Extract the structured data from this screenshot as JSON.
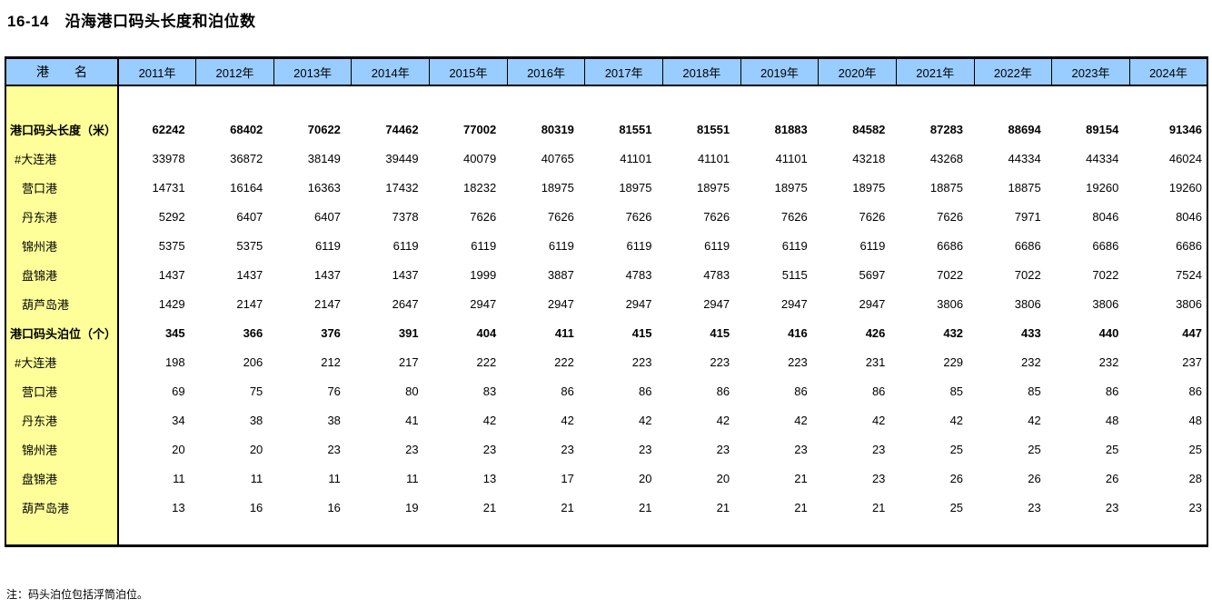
{
  "title": "16-14　沿海港口码头长度和泊位数",
  "note": "注：码头泊位包括浮筒泊位。",
  "colors": {
    "header_bg": "#99CCFF",
    "label_column_bg": "#FFFF99",
    "border": "#000000",
    "body_bg": "#FFFFFF"
  },
  "table": {
    "corner_header": "港　　名",
    "years": [
      "2011年",
      "2012年",
      "2013年",
      "2014年",
      "2015年",
      "2016年",
      "2017年",
      "2018年",
      "2019年",
      "2020年",
      "2021年",
      "2022年",
      "2023年",
      "2024年"
    ],
    "rows": [
      {
        "label": "港口码头长度（米）",
        "bold": true,
        "indent": 0,
        "values": [
          62242,
          68402,
          70622,
          74462,
          77002,
          80319,
          81551,
          81551,
          81883,
          84582,
          87283,
          88694,
          89154,
          91346
        ]
      },
      {
        "label": "#大连港",
        "bold": false,
        "indent": 1,
        "values": [
          33978,
          36872,
          38149,
          39449,
          40079,
          40765,
          41101,
          41101,
          41101,
          43218,
          43268,
          44334,
          44334,
          46024
        ]
      },
      {
        "label": "营口港",
        "bold": false,
        "indent": 2,
        "values": [
          14731,
          16164,
          16363,
          17432,
          18232,
          18975,
          18975,
          18975,
          18975,
          18975,
          18875,
          18875,
          19260,
          19260
        ]
      },
      {
        "label": "丹东港",
        "bold": false,
        "indent": 2,
        "values": [
          5292,
          6407,
          6407,
          7378,
          7626,
          7626,
          7626,
          7626,
          7626,
          7626,
          7626,
          7971,
          8046,
          8046
        ]
      },
      {
        "label": "锦州港",
        "bold": false,
        "indent": 2,
        "values": [
          5375,
          5375,
          6119,
          6119,
          6119,
          6119,
          6119,
          6119,
          6119,
          6119,
          6686,
          6686,
          6686,
          6686
        ]
      },
      {
        "label": "盘锦港",
        "bold": false,
        "indent": 2,
        "values": [
          1437,
          1437,
          1437,
          1437,
          1999,
          3887,
          4783,
          4783,
          5115,
          5697,
          7022,
          7022,
          7022,
          7524
        ]
      },
      {
        "label": "葫芦岛港",
        "bold": false,
        "indent": 2,
        "values": [
          1429,
          2147,
          2147,
          2647,
          2947,
          2947,
          2947,
          2947,
          2947,
          2947,
          3806,
          3806,
          3806,
          3806
        ]
      },
      {
        "label": "港口码头泊位（个）",
        "bold": true,
        "indent": 0,
        "values": [
          345,
          366,
          376,
          391,
          404,
          411,
          415,
          415,
          416,
          426,
          432,
          433,
          440,
          447
        ]
      },
      {
        "label": "#大连港",
        "bold": false,
        "indent": 1,
        "values": [
          198,
          206,
          212,
          217,
          222,
          222,
          223,
          223,
          223,
          231,
          229,
          232,
          232,
          237
        ]
      },
      {
        "label": "营口港",
        "bold": false,
        "indent": 2,
        "values": [
          69,
          75,
          76,
          80,
          83,
          86,
          86,
          86,
          86,
          86,
          85,
          85,
          86,
          86
        ]
      },
      {
        "label": "丹东港",
        "bold": false,
        "indent": 2,
        "values": [
          34,
          38,
          38,
          41,
          42,
          42,
          42,
          42,
          42,
          42,
          42,
          42,
          48,
          48
        ]
      },
      {
        "label": "锦州港",
        "bold": false,
        "indent": 2,
        "values": [
          20,
          20,
          23,
          23,
          23,
          23,
          23,
          23,
          23,
          23,
          25,
          25,
          25,
          25
        ]
      },
      {
        "label": "盘锦港",
        "bold": false,
        "indent": 2,
        "values": [
          11,
          11,
          11,
          11,
          13,
          17,
          20,
          20,
          21,
          23,
          26,
          26,
          26,
          28
        ]
      },
      {
        "label": "葫芦岛港",
        "bold": false,
        "indent": 2,
        "values": [
          13,
          16,
          16,
          19,
          21,
          21,
          21,
          21,
          21,
          21,
          25,
          23,
          23,
          23
        ]
      }
    ]
  }
}
